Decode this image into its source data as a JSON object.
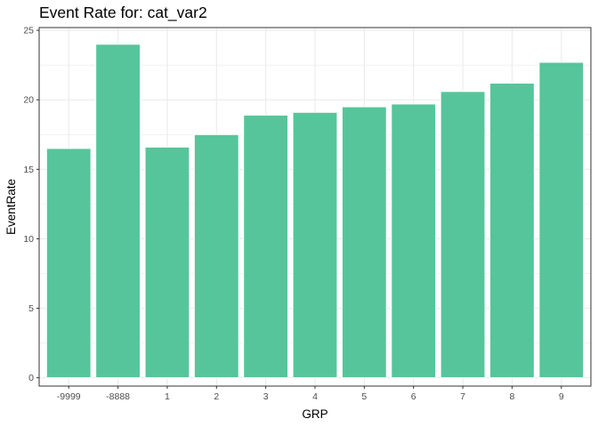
{
  "chart_data": {
    "type": "bar",
    "title": "Event Rate for: cat_var2",
    "xlabel": "GRP",
    "ylabel": "EventRate",
    "categories": [
      "-9999",
      "-8888",
      "1",
      "2",
      "3",
      "4",
      "5",
      "6",
      "7",
      "8",
      "9"
    ],
    "values": [
      16.5,
      24.0,
      16.6,
      17.5,
      18.9,
      19.1,
      19.5,
      19.7,
      20.6,
      21.2,
      22.7
    ],
    "ylim": [
      -0.6,
      25.2
    ],
    "yticks": [
      0,
      5,
      10,
      15,
      20,
      25
    ],
    "grid": true,
    "bar_color": "#56C59B",
    "theme": "bw"
  }
}
